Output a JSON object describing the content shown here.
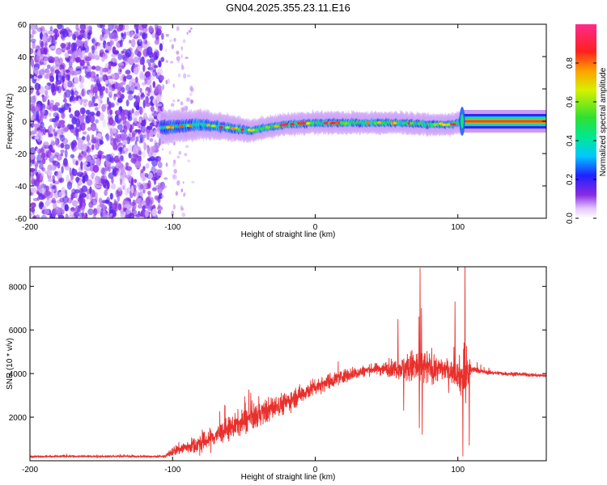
{
  "title": "GN04.2025.355.23.11.E16",
  "chart_data": [
    {
      "type": "heatmap",
      "name": "spectrogram",
      "title": "GN04.2025.355.23.11.E16",
      "xlabel": "Height of straight line (km)",
      "ylabel": "Frequency (Hz)",
      "xlim": [
        -200,
        162
      ],
      "ylim": [
        -60,
        60
      ],
      "xticks": [
        -200,
        -100,
        0,
        100
      ],
      "xtick_labels": [
        "-200",
        "-100",
        "0",
        "100"
      ],
      "yticks": [
        -60,
        -40,
        -20,
        0,
        20,
        40,
        60
      ],
      "ytick_labels": [
        "-60",
        "-40",
        "-20",
        "0",
        "20",
        "40",
        "60"
      ],
      "colorbar": {
        "label": "Normalized spectral amplitude",
        "range": [
          0,
          1
        ],
        "ticks": [
          0.0,
          0.2,
          0.4,
          0.6,
          0.8
        ],
        "tick_labels": [
          "0.0",
          "0.2",
          "0.4",
          "0.6",
          "0.8"
        ]
      },
      "regions": [
        {
          "name": "noise",
          "x_range": [
            -200,
            -107
          ],
          "freq_range": [
            -60,
            60
          ],
          "amplitude": 0.15
        },
        {
          "name": "sparse-noise",
          "x_range": [
            -107,
            -85
          ],
          "freq_range": [
            -60,
            60
          ],
          "amplitude": 0.05
        },
        {
          "name": "signal-band",
          "x_range": [
            -108,
            102
          ],
          "amplitude": 0.6
        },
        {
          "name": "stable-tone",
          "x_range": [
            104,
            162
          ],
          "frequency": 0,
          "amplitude": 0.95
        }
      ],
      "peak_frequency_track": {
        "x": [
          -108,
          -95,
          -80,
          -60,
          -45,
          -35,
          -20,
          0,
          20,
          40,
          60,
          80,
          95,
          100,
          105,
          130,
          162
        ],
        "freq": [
          -4,
          -3,
          -2,
          -4,
          -6,
          -4,
          -2,
          -1,
          -1,
          -1,
          -1,
          -2,
          -2,
          -1,
          0,
          0,
          0
        ]
      }
    },
    {
      "type": "line",
      "name": "snr",
      "xlabel": "Height of straight line (km)",
      "ylabel": "SNR (10 * v/v)",
      "xlim": [
        -200,
        162
      ],
      "ylim": [
        0,
        8900
      ],
      "xticks": [
        -200,
        -100,
        0,
        100
      ],
      "xtick_labels": [
        "-200",
        "-100",
        "0",
        "100"
      ],
      "yticks": [
        2000,
        4000,
        6000,
        8000
      ],
      "ytick_labels": [
        "2000",
        "4000",
        "6000",
        "8000"
      ],
      "color": "#e8302c",
      "envelope": {
        "x": [
          -200,
          -105,
          -100,
          -80,
          -60,
          -40,
          -20,
          0,
          20,
          40,
          60,
          70,
          80,
          90,
          100,
          104,
          106,
          110,
          120,
          162
        ],
        "mean": [
          200,
          200,
          450,
          800,
          1500,
          2100,
          2700,
          3400,
          3900,
          4200,
          4250,
          4300,
          4250,
          4200,
          4000,
          3800,
          4000,
          4200,
          4050,
          3900
        ],
        "noise": [
          60,
          60,
          350,
          650,
          800,
          900,
          750,
          600,
          500,
          350,
          700,
          1400,
          1200,
          700,
          900,
          2200,
          2000,
          250,
          150,
          120
        ]
      },
      "spikes": [
        {
          "x": 73.5,
          "y": 8850
        },
        {
          "x": 74.5,
          "y": 7000
        },
        {
          "x": 73,
          "y": 1500
        },
        {
          "x": 105,
          "y": 8950
        },
        {
          "x": 103.5,
          "y": 200
        },
        {
          "x": 108,
          "y": 700
        },
        {
          "x": 98,
          "y": 7300
        },
        {
          "x": 58,
          "y": 6500
        },
        {
          "x": 62,
          "y": 2300
        },
        {
          "x": 75,
          "y": 1200
        }
      ]
    }
  ]
}
